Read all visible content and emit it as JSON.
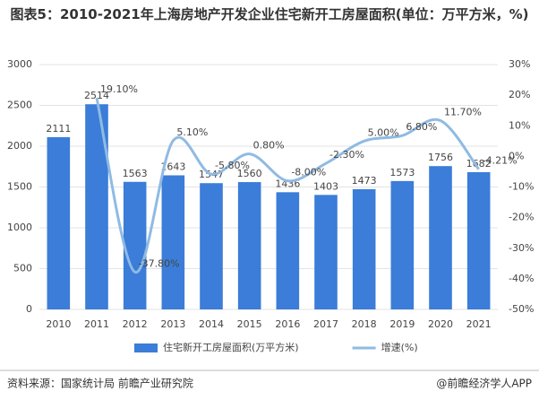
{
  "chart_data": {
    "type": "bar_line",
    "title": "图表5：2010-2021年上海房地产开发企业住宅新开工房屋面积(单位：万平方米，%)",
    "categories": [
      "2010",
      "2011",
      "2012",
      "2013",
      "2014",
      "2015",
      "2016",
      "2017",
      "2018",
      "2019",
      "2020",
      "2021"
    ],
    "series": [
      {
        "name": "住宅新开工房屋面积(万平方米)",
        "type": "bar",
        "color": "#3b7dd8",
        "axis": "y",
        "values": [
          2111,
          2514,
          1563,
          1643,
          1547,
          1560,
          1436,
          1403,
          1473,
          1573,
          1756,
          1682
        ]
      },
      {
        "name": "增速(%)",
        "type": "line",
        "color": "#8fbbe3",
        "axis": "y2",
        "values": [
          null,
          19.1,
          -37.8,
          5.1,
          -5.8,
          0.8,
          -8.0,
          -2.3,
          5.0,
          6.8,
          11.7,
          -4.21
        ],
        "value_labels": [
          null,
          "19.10%",
          "-37.80%",
          "5.10%",
          "-5.80%",
          "0.80%",
          "-8.00%",
          "-2.30%",
          "5.00%",
          "6.80%",
          "11.70%",
          "-4.21%"
        ]
      }
    ],
    "ylim": [
      0,
      3000
    ],
    "yticks": [
      0,
      500,
      1000,
      1500,
      2000,
      2500,
      3000
    ],
    "y2lim": [
      -50,
      30
    ],
    "y2ticks": [
      {
        "value": -50,
        "label": "-50%"
      },
      {
        "value": -40,
        "label": "-40%"
      },
      {
        "value": -30,
        "label": "-30%"
      },
      {
        "value": -20,
        "label": "-20%"
      },
      {
        "value": -10,
        "label": "-10%"
      },
      {
        "value": 0,
        "label": "0%"
      },
      {
        "value": 10,
        "label": "10%"
      },
      {
        "value": 20,
        "label": "20%"
      },
      {
        "value": 30,
        "label": "30%"
      }
    ],
    "grid": true,
    "legend": "bottom",
    "source": "资料来源：国家统计局 前瞻产业研究院",
    "brand": "@前瞻经济学人APP"
  }
}
